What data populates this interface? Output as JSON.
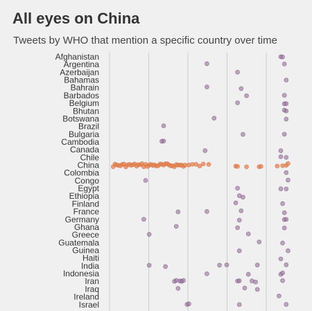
{
  "chart_data": {
    "type": "scatter",
    "title": "All eyes on China",
    "subtitle": "Tweets by WHO that mention a specific country over time",
    "xlabel": "",
    "ylabel": "",
    "grid": true,
    "x_gridlines": 5,
    "colors": {
      "highlight": "#e8824e",
      "other": "#9a6e9e",
      "background": "#f0f0f0",
      "grid": "#cccccc",
      "label": "#333333"
    },
    "highlight_category": "China",
    "categories": [
      "Afghanistan",
      "Argentina",
      "Azerbaijan",
      "Bahamas",
      "Bahrain",
      "Barbados",
      "Belgium",
      "Bhutan",
      "Botswana",
      "Brazil",
      "Bulgaria",
      "Cambodia",
      "Canada",
      "Chile",
      "China",
      "Colombia",
      "Congo",
      "Egypt",
      "Ethiopia",
      "Finland",
      "France",
      "Germany",
      "Ghana",
      "Greece",
      "Guatemala",
      "Guinea",
      "Haiti",
      "India",
      "Indonesia",
      "Iran",
      "Iraq",
      "Ireland",
      "Israel"
    ],
    "points": {
      "Afghanistan": [
        0.95,
        0.96
      ],
      "Argentina": [
        0.54,
        0.97
      ],
      "Azerbaijan": [
        0.71
      ],
      "Bahamas": [
        0.98
      ],
      "Bahrain": [
        0.54,
        0.73
      ],
      "Barbados": [
        0.76,
        0.97
      ],
      "Belgium": [
        0.71,
        0.97,
        0.98
      ],
      "Bhutan": [
        0.97,
        0.98
      ],
      "Botswana": [
        0.58,
        0.98
      ],
      "Brazil": [
        0.3
      ],
      "Bulgaria": [
        0.74,
        0.97
      ],
      "Cambodia": [
        0.29,
        0.3
      ],
      "Canada": [
        0.53,
        0.95
      ],
      "Chile": [
        0.95,
        0.98
      ],
      "China": [
        0.02,
        0.03,
        0.04,
        0.05,
        0.06,
        0.07,
        0.08,
        0.09,
        0.1,
        0.11,
        0.12,
        0.13,
        0.14,
        0.15,
        0.16,
        0.17,
        0.18,
        0.19,
        0.2,
        0.21,
        0.22,
        0.23,
        0.24,
        0.25,
        0.26,
        0.27,
        0.28,
        0.29,
        0.3,
        0.31,
        0.32,
        0.33,
        0.34,
        0.35,
        0.36,
        0.37,
        0.38,
        0.39,
        0.4,
        0.41,
        0.42,
        0.44,
        0.46,
        0.48,
        0.5,
        0.52,
        0.55,
        0.7,
        0.71,
        0.76,
        0.83,
        0.84,
        0.93,
        0.96,
        0.98,
        0.99
      ],
      "Colombia": [
        0.98
      ],
      "Congo": [
        0.2,
        0.99
      ],
      "Egypt": [
        0.71,
        0.95,
        0.98
      ],
      "Ethiopia": [
        0.72,
        0.74
      ],
      "Finland": [
        0.7,
        0.96
      ],
      "France": [
        0.38,
        0.54,
        0.73,
        0.97
      ],
      "Germany": [
        0.19,
        0.72,
        0.97,
        0.98
      ],
      "Ghana": [
        0.37,
        0.71,
        0.97
      ],
      "Greece": [
        0.22,
        0.77
      ],
      "Guatemala": [
        0.83,
        0.96
      ],
      "Guinea": [
        0.72,
        0.99
      ],
      "Haiti": [
        0.95
      ],
      "India": [
        0.22,
        0.31,
        0.61,
        0.65,
        0.82,
        0.98
      ],
      "Indonesia": [
        0.54,
        0.77,
        0.95,
        0.96
      ],
      "Iran": [
        0.36,
        0.37,
        0.39,
        0.4,
        0.41,
        0.71,
        0.72,
        0.79,
        0.81,
        0.96
      ],
      "Iraq": [
        0.38,
        0.75,
        0.82
      ],
      "Ireland": [
        0.94
      ],
      "Israel": [
        0.43,
        0.44,
        0.72,
        0.98
      ]
    }
  }
}
